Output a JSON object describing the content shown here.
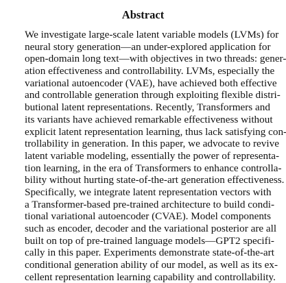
{
  "abstract": {
    "title": "Abstract",
    "lines": [
      "We investigate large-scale latent variable models (LVMs) for",
      "neural story generation—an under-explored application for",
      "open-domain long text—with objectives in two threads: gener-",
      "ation effectiveness and controllability. LVMs, especially the",
      "variational autoencoder (VAE), have achieved both effective",
      "and controllable generation through exploiting flexible distri-",
      "butional latent representations. Recently, Transformers and",
      "its variants have achieved remarkable effectiveness without",
      "explicit latent representation learning, thus lack satisfying con-",
      "trollability in generation. In this paper, we advocate to revive",
      "latent variable modeling, essentially the power of representa-",
      "tion learning, in the era of Transformers to enhance controlla-",
      "bility without hurting state-of-the-art generation effectiveness.",
      "Specifically, we integrate latent representation vectors with",
      "a Transformer-based pre-trained architecture to build condi-",
      "tional variational autoencoder (CVAE). Model components",
      "such as encoder, decoder and the variational posterior are all",
      "built on top of pre-trained language models—GPT2 specifi-",
      "cally in this paper. Experiments demonstrate state-of-the-art",
      "conditional generation ability of our model, as well as its ex-",
      "cellent representation learning capability and controllability."
    ]
  }
}
